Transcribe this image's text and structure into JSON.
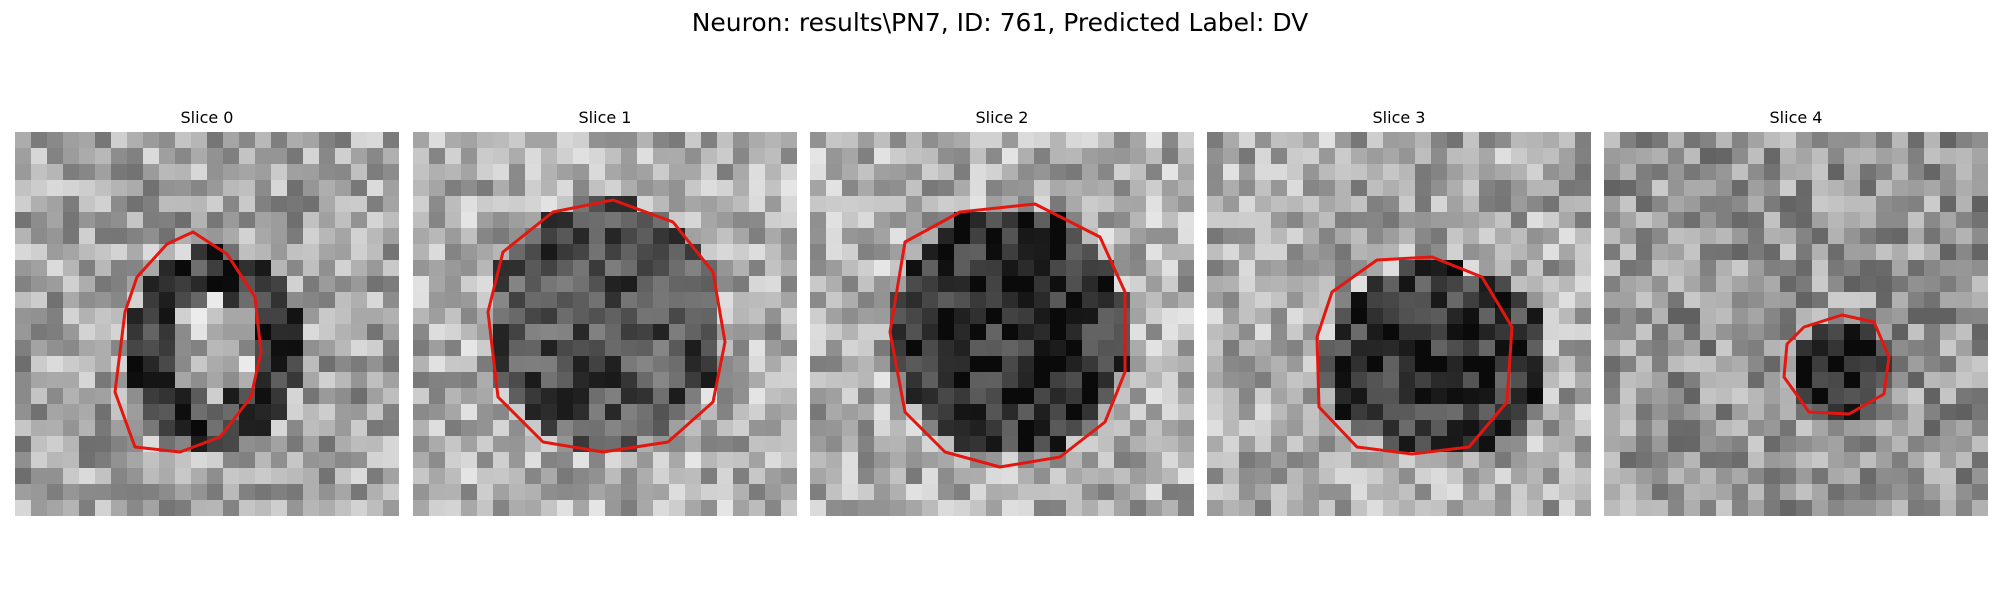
{
  "figure": {
    "title": "Neuron: results\\PN7, ID: 761, Predicted Label: DV"
  },
  "panels": [
    {
      "title": "Slice 0",
      "contour_color": "#e3170f"
    },
    {
      "title": "Slice 1",
      "contour_color": "#e3170f"
    },
    {
      "title": "Slice 2",
      "contour_color": "#e3170f"
    },
    {
      "title": "Slice 3",
      "contour_color": "#e3170f"
    },
    {
      "title": "Slice 4",
      "contour_color": "#e3170f"
    }
  ]
}
